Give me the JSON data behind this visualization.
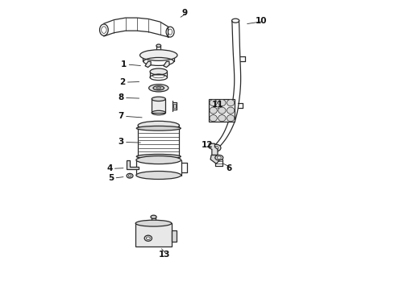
{
  "background_color": "#ffffff",
  "line_color": "#2a2a2a",
  "label_color": "#111111",
  "fig_width": 4.9,
  "fig_height": 3.6,
  "dpi": 100,
  "parts_labels": [
    [
      9,
      0.455,
      0.96,
      0.435,
      0.94
    ],
    [
      1,
      0.245,
      0.78,
      0.31,
      0.775
    ],
    [
      2,
      0.24,
      0.718,
      0.305,
      0.72
    ],
    [
      8,
      0.235,
      0.664,
      0.305,
      0.662
    ],
    [
      7,
      0.235,
      0.6,
      0.315,
      0.595
    ],
    [
      3,
      0.235,
      0.51,
      0.31,
      0.508
    ],
    [
      4,
      0.195,
      0.418,
      0.25,
      0.42
    ],
    [
      5,
      0.2,
      0.385,
      0.25,
      0.39
    ],
    [
      10,
      0.72,
      0.93,
      0.665,
      0.92
    ],
    [
      11,
      0.57,
      0.64,
      0.565,
      0.62
    ],
    [
      12,
      0.535,
      0.5,
      0.545,
      0.49
    ],
    [
      6,
      0.61,
      0.42,
      0.58,
      0.44
    ],
    [
      13,
      0.385,
      0.118,
      0.37,
      0.145
    ]
  ]
}
